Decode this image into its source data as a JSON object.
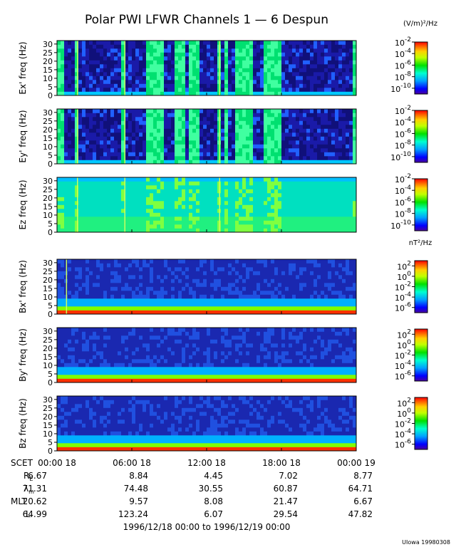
{
  "title": "Polar PWI LFWR Channels 1 — 6 Despun",
  "units": {
    "electric": "(V/m)²/Hz",
    "magnetic": "nT²/Hz"
  },
  "credit": "UIowa 19980308",
  "date_range": "1996/12/18 00:00 to 1996/12/19 00:00",
  "chart_data": [
    {
      "type": "heatmap",
      "channel": "ex",
      "ylabel": "Ex' freq (Hz)",
      "ylim": [
        0,
        32
      ],
      "yticks": [
        "0",
        "5",
        "10",
        "15",
        "20",
        "25",
        "30"
      ],
      "cbar_ticks": [
        {
          "base": "10",
          "exp": "-2"
        },
        {
          "base": "10",
          "exp": "-4"
        },
        {
          "base": "10",
          "exp": "-6"
        },
        {
          "base": "10",
          "exp": "-8"
        },
        {
          "base": "10",
          "exp": "-10"
        }
      ],
      "cbar_log_range": [
        -11,
        -2
      ]
    },
    {
      "type": "heatmap",
      "channel": "ey",
      "ylabel": "Ey' freq (Hz)",
      "ylim": [
        0,
        32
      ],
      "yticks": [
        "0",
        "5",
        "10",
        "15",
        "20",
        "25",
        "30"
      ],
      "cbar_ticks": [
        {
          "base": "10",
          "exp": "-2"
        },
        {
          "base": "10",
          "exp": "-4"
        },
        {
          "base": "10",
          "exp": "-6"
        },
        {
          "base": "10",
          "exp": "-8"
        },
        {
          "base": "10",
          "exp": "-10"
        }
      ],
      "cbar_log_range": [
        -11,
        -2
      ]
    },
    {
      "type": "heatmap",
      "channel": "ez",
      "ylabel": "Ez freq (Hz)",
      "ylim": [
        0,
        32
      ],
      "yticks": [
        "0",
        "5",
        "10",
        "15",
        "20",
        "25",
        "30"
      ],
      "cbar_ticks": [
        {
          "base": "10",
          "exp": "-2"
        },
        {
          "base": "10",
          "exp": "-4"
        },
        {
          "base": "10",
          "exp": "-6"
        },
        {
          "base": "10",
          "exp": "-8"
        },
        {
          "base": "10",
          "exp": "-10"
        }
      ],
      "cbar_log_range": [
        -11,
        -2
      ]
    },
    {
      "type": "heatmap",
      "channel": "bx",
      "ylabel": "Bx' freq (Hz)",
      "ylim": [
        0,
        32
      ],
      "yticks": [
        "0",
        "5",
        "10",
        "15",
        "20",
        "25",
        "30"
      ],
      "cbar_ticks": [
        {
          "base": "10",
          "exp": "2"
        },
        {
          "base": "10",
          "exp": "0"
        },
        {
          "base": "10",
          "exp": "-2"
        },
        {
          "base": "10",
          "exp": "-4"
        },
        {
          "base": "10",
          "exp": "-6"
        }
      ],
      "cbar_log_range": [
        -7,
        3
      ]
    },
    {
      "type": "heatmap",
      "channel": "by",
      "ylabel": "By' freq (Hz)",
      "ylim": [
        0,
        32
      ],
      "yticks": [
        "0",
        "5",
        "10",
        "15",
        "20",
        "25",
        "30"
      ],
      "cbar_ticks": [
        {
          "base": "10",
          "exp": "2"
        },
        {
          "base": "10",
          "exp": "0"
        },
        {
          "base": "10",
          "exp": "-2"
        },
        {
          "base": "10",
          "exp": "-4"
        },
        {
          "base": "10",
          "exp": "-6"
        }
      ],
      "cbar_log_range": [
        -7,
        3
      ]
    },
    {
      "type": "heatmap",
      "channel": "bz",
      "ylabel": "Bz freq (Hz)",
      "ylim": [
        0,
        32
      ],
      "yticks": [
        "0",
        "5",
        "10",
        "15",
        "20",
        "25",
        "30"
      ],
      "cbar_ticks": [
        {
          "base": "10",
          "exp": "2"
        },
        {
          "base": "10",
          "exp": "0"
        },
        {
          "base": "10",
          "exp": "-2"
        },
        {
          "base": "10",
          "exp": "-4"
        },
        {
          "base": "10",
          "exp": "-6"
        }
      ],
      "cbar_log_range": [
        -7,
        3
      ]
    }
  ],
  "x_axis": {
    "label": "SCET",
    "xlim_hours": [
      0,
      24
    ],
    "ticks": [
      {
        "hour": 0,
        "label": "00:00 18"
      },
      {
        "hour": 6,
        "label": "06:00 18"
      },
      {
        "hour": 12,
        "label": "12:00 18"
      },
      {
        "hour": 18,
        "label": "18:00 18"
      },
      {
        "hour": 24,
        "label": "00:00 19"
      }
    ]
  },
  "ephemeris": [
    {
      "label": "R",
      "sub": "E",
      "values": [
        "6.67",
        "8.84",
        "4.45",
        "7.02",
        "8.77"
      ]
    },
    {
      "label": "λ",
      "sub": "m",
      "values": [
        "71.31",
        "74.48",
        "30.55",
        "60.87",
        "64.71"
      ]
    },
    {
      "label": "MLT",
      "sub": "",
      "values": [
        "20.62",
        "9.57",
        "8.08",
        "21.47",
        "6.67"
      ]
    },
    {
      "label": "L",
      "sub": "",
      "values": [
        "64.99",
        "123.24",
        "6.07",
        "29.54",
        "47.82"
      ]
    }
  ]
}
